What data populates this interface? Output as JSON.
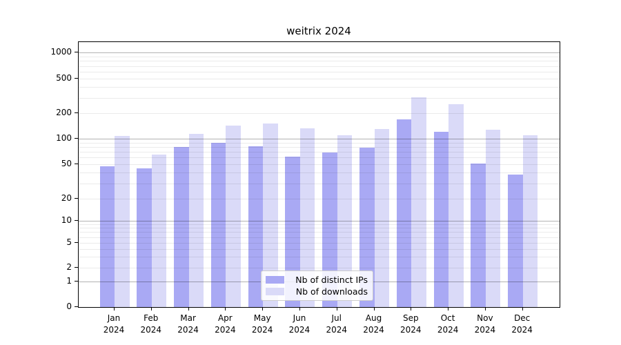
{
  "chart_data": {
    "type": "bar",
    "title": "weitrix 2024",
    "categories": [
      "Jan 2024",
      "Feb 2024",
      "Mar 2024",
      "Apr 2024",
      "May 2024",
      "Jun 2024",
      "Jul 2024",
      "Aug 2024",
      "Sep 2024",
      "Oct 2024",
      "Nov 2024",
      "Dec 2024"
    ],
    "series": [
      {
        "name": "Nb of distinct IPs",
        "color": "#a9a9f4",
        "values": [
          47,
          45,
          80,
          89,
          82,
          62,
          69,
          78,
          170,
          121,
          51,
          38
        ]
      },
      {
        "name": "Nb of downloads",
        "color": "#dadaf8",
        "values": [
          107,
          65,
          114,
          142,
          151,
          133,
          109,
          130,
          305,
          255,
          127,
          110
        ]
      }
    ],
    "y_axis": {
      "ticks": [
        0,
        1,
        2,
        5,
        10,
        20,
        50,
        100,
        200,
        500,
        1000
      ],
      "scale": "logarithmic above 1 with 0 baseline",
      "major_gridline_values": [
        1,
        10,
        100,
        1000
      ],
      "ylim_top_approx": 1300
    },
    "x_axis": {
      "tick_label_line2": "2024"
    },
    "legend": {
      "position": "lower-center",
      "items": [
        "Nb of distinct IPs",
        "Nb of downloads"
      ]
    },
    "grid": "on"
  }
}
